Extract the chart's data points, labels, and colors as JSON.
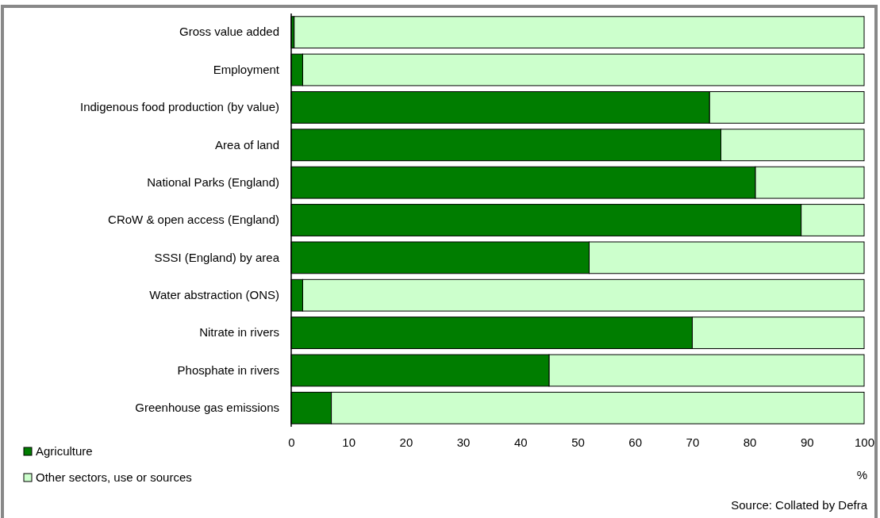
{
  "chart_data": {
    "type": "bar",
    "orientation": "horizontal",
    "stacked": true,
    "categories": [
      "Gross value added",
      "Employment",
      "Indigenous food production (by value)",
      "Area of land ",
      "National Parks (England)",
      "CRoW & open access (England)",
      "SSSI (England) by area",
      "Water abstraction (ONS)",
      "Nitrate in rivers",
      "Phosphate in rivers",
      "Greenhouse gas emissions"
    ],
    "series": [
      {
        "name": "Agriculture",
        "color": "#007d00",
        "values": [
          0.5,
          2,
          73,
          75,
          81,
          89,
          52,
          2,
          70,
          45,
          7
        ]
      },
      {
        "name": "Other sectors, use or sources",
        "color": "#ccffcc",
        "values": [
          99.5,
          98,
          27,
          25,
          19,
          11,
          48,
          98,
          30,
          55,
          93
        ]
      }
    ],
    "xlim": [
      0,
      100
    ],
    "xticks": [
      0,
      10,
      20,
      30,
      40,
      50,
      60,
      70,
      80,
      90,
      100
    ],
    "xlabel": "%",
    "grid": false,
    "legend": "bottom left",
    "annotations": [
      "Source: Collated by Defra"
    ]
  }
}
